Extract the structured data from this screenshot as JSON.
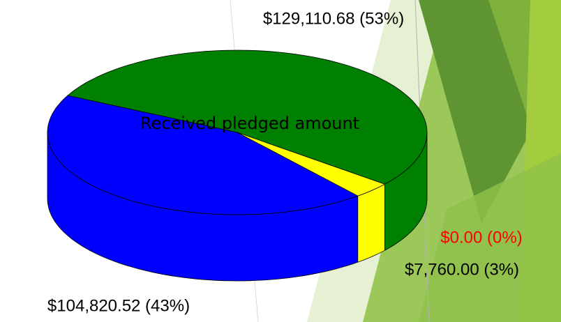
{
  "chart_data": {
    "type": "pie3d",
    "title": "Received pledged amount",
    "values": [
      129110.68,
      104820.52,
      7760.0,
      0.0
    ],
    "value_labels": [
      "$129,110.68 (53%)",
      "$104,820.52 (43%)",
      "$7,760.00 (3%)",
      "$0.00 (0%)"
    ],
    "colors": [
      "#008000",
      "#0000ff",
      "#ffff00",
      "#ff0000"
    ],
    "label_colors": [
      "#000000",
      "#000000",
      "#000000",
      "#ff0000"
    ]
  }
}
